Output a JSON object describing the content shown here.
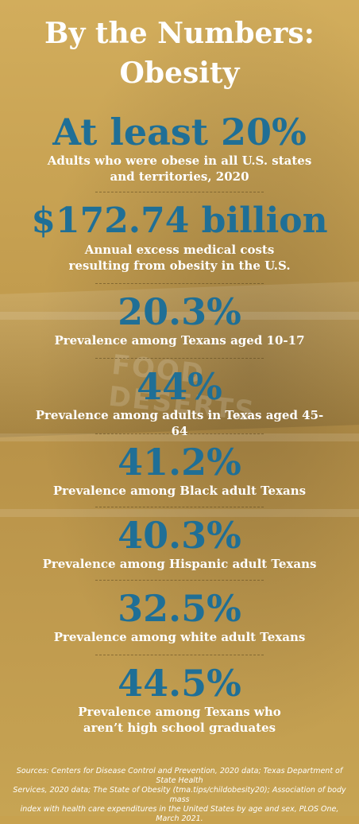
{
  "title": {
    "line1": "By the Numbers:",
    "line2": "Obesity"
  },
  "stats": [
    {
      "value": "At least 20%",
      "label_lines": [
        "Adults who were obese in all U.S. states",
        "and territories, 2020"
      ]
    },
    {
      "value": "$172.74 billion",
      "label_lines": [
        "Annual excess medical costs",
        "resulting from obesity in the U.S."
      ]
    },
    {
      "value": "20.3%",
      "label_lines": [
        "Prevalence among Texans aged 10-17"
      ]
    },
    {
      "value": "44%",
      "label_lines": [
        "Prevalence among adults in Texas aged 45-64"
      ]
    },
    {
      "value": "41.2%",
      "label_lines": [
        "Prevalence among Black adult Texans"
      ]
    },
    {
      "value": "40.3%",
      "label_lines": [
        "Prevalence among Hispanic adult Texans"
      ]
    },
    {
      "value": "32.5%",
      "label_lines": [
        "Prevalence among white adult Texans"
      ]
    },
    {
      "value": "44.5%",
      "label_lines": [
        "Prevalence among Texans who",
        "aren’t high school graduates"
      ]
    }
  ],
  "background_sign_text": "FOOD DESERTS",
  "sources_lines": [
    "Sources: Centers for Disease Control and Prevention, 2020 data; Texas Department of State Health",
    "Services, 2020 data; The State of Obesity (tma.tips/childobesity20); Association of body mass",
    "index with health care expenditures in the United States by age and sex, PLOS One, March 2021."
  ],
  "colors": {
    "background": "#c8a24f",
    "stat_number": "#1f6f96",
    "text": "#ffffff"
  }
}
